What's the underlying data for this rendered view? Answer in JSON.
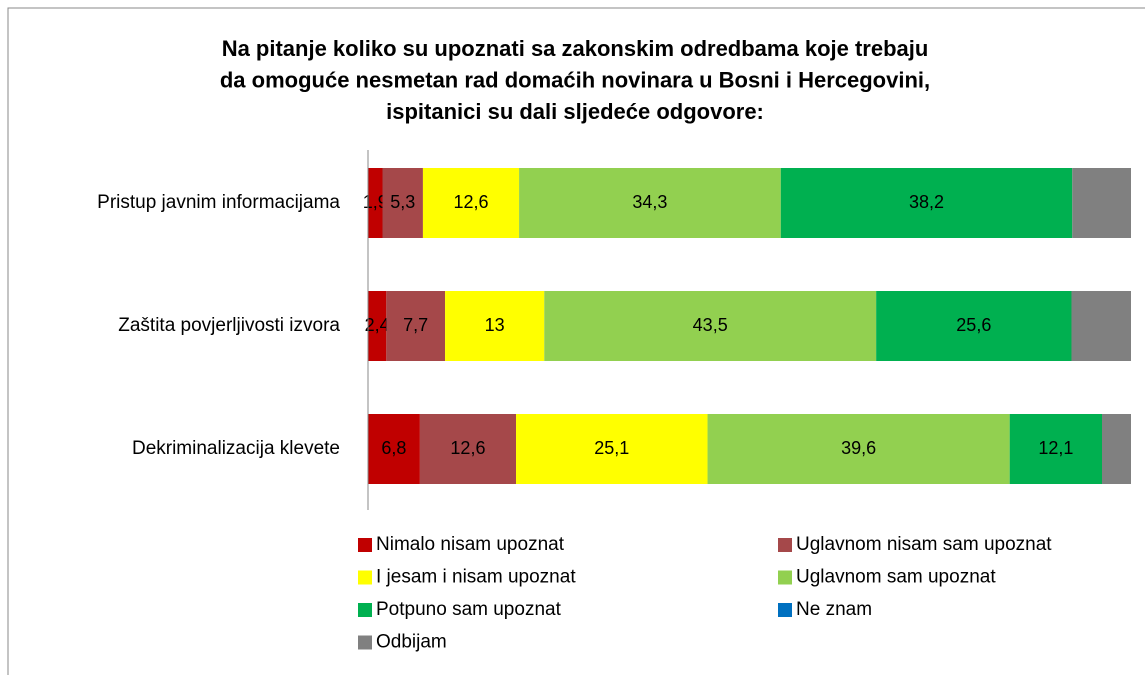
{
  "chart_data": {
    "type": "stacked-bar-horizontal",
    "title": [
      "Na pitanje koliko su upoznati sa zakonskim odredbama koje trebaju",
      "da omoguće nesmetan rad domaćih novinara u Bosni i Hercegovini,",
      "ispitanici su dali sljedeće odgovore:"
    ],
    "categories": [
      "Pristup javnim informacijama",
      "Zaštita povjerljivosti izvora",
      "Dekriminalizacija klevete"
    ],
    "xlim": [
      0,
      100
    ],
    "series": [
      {
        "name": "Nimalo nisam upoznat",
        "color": "#c00000",
        "values": [
          1.9,
          2.4,
          6.8
        ],
        "value_labels": [
          "1,9",
          "2,4",
          "6,8"
        ]
      },
      {
        "name": "Uglavnom nisam sam upoznat",
        "color": "#a5484a",
        "values": [
          5.3,
          7.7,
          12.6
        ],
        "value_labels": [
          "5,3",
          "7,7",
          "12,6"
        ]
      },
      {
        "name": "I jesam i nisam upoznat",
        "color": "#ffff00",
        "values": [
          12.6,
          13,
          25.1
        ],
        "value_labels": [
          "12,6",
          "13",
          "25,1"
        ]
      },
      {
        "name": "Uglavnom sam upoznat",
        "color": "#92d050",
        "values": [
          34.3,
          43.5,
          39.6
        ],
        "value_labels": [
          "34,3",
          "43,5",
          "39,6"
        ]
      },
      {
        "name": "Potpuno sam upoznat",
        "color": "#00b050",
        "values": [
          38.2,
          25.6,
          12.1
        ],
        "value_labels": [
          "38,2",
          "25,6",
          "12,1"
        ]
      },
      {
        "name": "Ne znam",
        "color": "#0070c0",
        "values": [
          0,
          0,
          0
        ]
      },
      {
        "name": "Odbijam",
        "color": "#808080",
        "values": [
          7.7,
          7.8,
          3.8
        ]
      }
    ]
  }
}
